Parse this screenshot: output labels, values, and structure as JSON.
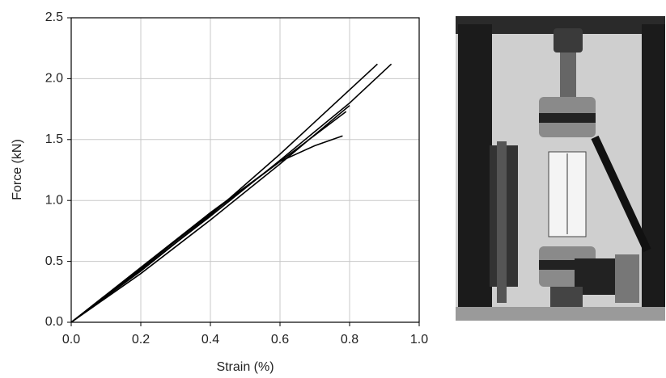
{
  "chart_data": {
    "type": "line",
    "x_label": "Strain (%)",
    "y_label": "Force (kN)",
    "xlim": [
      0,
      1
    ],
    "ylim": [
      0,
      2.5
    ],
    "xticks": [
      {
        "value": 0,
        "label": "0.0"
      },
      0.2,
      0.4,
      0.6,
      0.8,
      {
        "value": 1,
        "label": "1.0"
      }
    ],
    "yticks": [
      {
        "value": 0,
        "label": "0.0"
      },
      0.5,
      {
        "value": 1,
        "label": "1.0"
      },
      1.5,
      {
        "value": 2,
        "label": "2.0"
      },
      2.5
    ],
    "grid": true,
    "series": [
      {
        "color": "#000000",
        "x": [
          0,
          0.2,
          0.4,
          0.6,
          0.88
        ],
        "values": [
          0,
          0.42,
          0.88,
          1.38,
          2.12
        ]
      },
      {
        "color": "#000000",
        "x": [
          0,
          0.2,
          0.4,
          0.6,
          0.8,
          0.92
        ],
        "values": [
          0,
          0.43,
          0.87,
          1.33,
          1.8,
          2.12
        ]
      },
      {
        "color": "#000000",
        "x": [
          0,
          0.2,
          0.4,
          0.6,
          0.79
        ],
        "values": [
          0,
          0.44,
          0.89,
          1.32,
          1.73
        ]
      },
      {
        "color": "#000000",
        "x": [
          0,
          0.2,
          0.4,
          0.6,
          0.7,
          0.78
        ],
        "values": [
          0,
          0.45,
          0.9,
          1.32,
          1.45,
          1.53
        ]
      },
      {
        "color": "#000000",
        "x": [
          0,
          0.2,
          0.4,
          0.6,
          0.8
        ],
        "values": [
          0,
          0.4,
          0.84,
          1.3,
          1.78
        ]
      }
    ]
  }
}
